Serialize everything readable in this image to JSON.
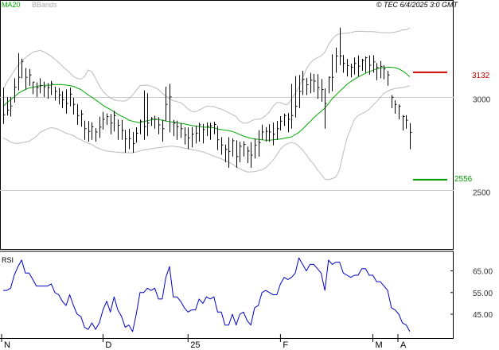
{
  "header": {
    "ma20_label": "MA20",
    "bbands_label": "BBands",
    "copyright": "© TEC 6/4/2025 3:0 GMT"
  },
  "price_panel": {
    "resistance_label": "3132",
    "support_label": "2556",
    "colors": {
      "resistance": "#cc0000",
      "support": "#009900",
      "ma20": "#00aa00",
      "bands": "#bbbbbb",
      "bars": "#000000"
    }
  },
  "rsi_panel": {
    "label": "RSI",
    "color": "#0000cc"
  },
  "chart_data": [
    {
      "type": "ohlc",
      "title": "",
      "legend": [
        "MA20",
        "BBands"
      ],
      "x_ticks": [
        "N",
        "D",
        "25",
        "F",
        "M",
        "A"
      ],
      "y_ticks": [
        "3000",
        "2500"
      ],
      "ylim": [
        2180,
        3520
      ],
      "grid": true,
      "levels": {
        "resistance": 3132,
        "support": 2556
      },
      "close": [
        2904,
        2930,
        2951,
        3052,
        3105,
        3190,
        3105,
        3118,
        3080,
        3050,
        3060,
        3055,
        3050,
        3072,
        3030,
        3010,
        2985,
        2965,
        3015,
        2960,
        2900,
        2908,
        2830,
        2815,
        2840,
        2812,
        2838,
        2880,
        2895,
        2860,
        2900,
        2848,
        2820,
        2775,
        2776,
        2750,
        2805,
        2870,
        2840,
        2860,
        2885,
        2880,
        2850,
        2830,
        2960,
        3000,
        2860,
        2840,
        2830,
        2795,
        2780,
        2800,
        2805,
        2850,
        2825,
        2842,
        2845,
        2852,
        2770,
        2742,
        2720,
        2708,
        2765,
        2680,
        2735,
        2745,
        2710,
        2688,
        2742,
        2755,
        2812,
        2815,
        2812,
        2800,
        2830,
        2870,
        2900,
        2880,
        2900,
        2950,
        3030,
        3095,
        3065,
        3090,
        3085,
        3050,
        3040,
        2965,
        3105,
        3105,
        3220,
        3220,
        3180,
        3168,
        3160,
        3180,
        3165,
        3196,
        3210,
        3170,
        3188,
        3158,
        3164,
        3150,
        3118,
        2998,
        2960,
        2950,
        2895,
        2875,
        2810
      ],
      "high": [
        3050,
        3000,
        3000,
        3100,
        3235,
        3205,
        3155,
        3150,
        3080,
        3078,
        3100,
        3082,
        3074,
        3086,
        3055,
        3048,
        3030,
        3040,
        3050,
        2995,
        2962,
        2930,
        2873,
        2870,
        2864,
        2833,
        2894,
        2919,
        2911,
        2909,
        2925,
        2878,
        2876,
        2823,
        2830,
        2812,
        2837,
        2878,
        3035,
        3020,
        2892,
        2899,
        2891,
        2877,
        3055,
        3070,
        2877,
        2873,
        2860,
        2837,
        2836,
        2838,
        2847,
        2862,
        2855,
        2863,
        2861,
        2867,
        2844,
        2784,
        2744,
        2784,
        2778,
        2767,
        2759,
        2762,
        2733,
        2758,
        2776,
        2822,
        2851,
        2838,
        2853,
        2863,
        2871,
        2897,
        2910,
        2913,
        3070,
        3112,
        3117,
        3140,
        3102,
        3129,
        3123,
        3122,
        3096,
        3045,
        3110,
        3228,
        3265,
        3372,
        3225,
        3203,
        3178,
        3212,
        3222,
        3204,
        3217,
        3222,
        3224,
        3182,
        3193,
        3169,
        3140,
        3010,
        2982,
        2960,
        2903,
        2902,
        2860
      ],
      "low": [
        2855,
        2900,
        2895,
        2970,
        3035,
        3100,
        3040,
        3060,
        3015,
        3000,
        3020,
        3000,
        2990,
        3010,
        2980,
        2960,
        2940,
        2910,
        2950,
        2905,
        2850,
        2840,
        2770,
        2760,
        2770,
        2760,
        2780,
        2825,
        2850,
        2800,
        2815,
        2770,
        2770,
        2700,
        2720,
        2700,
        2755,
        2800,
        2770,
        2790,
        2845,
        2830,
        2800,
        2760,
        2870,
        2810,
        2790,
        2770,
        2780,
        2745,
        2720,
        2730,
        2750,
        2760,
        2750,
        2790,
        2770,
        2800,
        2715,
        2690,
        2650,
        2620,
        2680,
        2620,
        2650,
        2680,
        2645,
        2620,
        2670,
        2680,
        2770,
        2760,
        2760,
        2740,
        2770,
        2820,
        2845,
        2810,
        2830,
        2890,
        2940,
        3010,
        3010,
        3020,
        3025,
        2990,
        2975,
        2830,
        3020,
        3030,
        3130,
        3170,
        3130,
        3110,
        3105,
        3120,
        3110,
        3140,
        3130,
        3120,
        3130,
        3090,
        3100,
        3095,
        3060,
        2940,
        2910,
        2880,
        2820,
        2830,
        2720
      ],
      "ma20": [
        2950,
        2968,
        2985,
        3000,
        3018,
        3030,
        3040,
        3048,
        3052,
        3056,
        3060,
        3062,
        3063,
        3064,
        3066,
        3067,
        3066,
        3064,
        3061,
        3057,
        3048,
        3040,
        3025,
        3011,
        2998,
        2985,
        2970,
        2955,
        2943,
        2933,
        2920,
        2908,
        2896,
        2888,
        2875,
        2870,
        2865,
        2862,
        2868,
        2872,
        2877,
        2879,
        2880,
        2875,
        2871,
        2867,
        2865,
        2863,
        2858,
        2855,
        2851,
        2847,
        2844,
        2840,
        2838,
        2837,
        2836,
        2835,
        2827,
        2825,
        2822,
        2819,
        2815,
        2807,
        2798,
        2790,
        2784,
        2778,
        2775,
        2772,
        2770,
        2768,
        2768,
        2770,
        2772,
        2774,
        2778,
        2782,
        2786,
        2798,
        2810,
        2828,
        2848,
        2868,
        2888,
        2906,
        2922,
        2940,
        2965,
        2990,
        3010,
        3030,
        3048,
        3068,
        3082,
        3095,
        3107,
        3117,
        3127,
        3135,
        3143,
        3150,
        3155,
        3158,
        3160,
        3159,
        3157,
        3150,
        3140,
        3125,
        3108
      ],
      "bb_upper": [
        3040,
        3080,
        3110,
        3140,
        3170,
        3190,
        3210,
        3225,
        3240,
        3245,
        3250,
        3242,
        3232,
        3218,
        3202,
        3185,
        3165,
        3148,
        3130,
        3110,
        3100,
        3095,
        3110,
        3145,
        3135,
        3100,
        3060,
        3030,
        3010,
        2995,
        2985,
        2980,
        2978,
        2978,
        2990,
        3010,
        3035,
        3060,
        3062,
        3064,
        3058,
        3050,
        3040,
        3020,
        3005,
        2990,
        2980,
        2975,
        2970,
        2955,
        2935,
        2922,
        2920,
        2930,
        2940,
        2950,
        2950,
        2948,
        2940,
        2935,
        2925,
        2915,
        2905,
        2895,
        2870,
        2860,
        2860,
        2870,
        2880,
        2880,
        2885,
        2900,
        2920,
        2950,
        2970,
        2970,
        2960,
        2960,
        2990,
        3020,
        3050,
        3100,
        3150,
        3180,
        3200,
        3210,
        3220,
        3240,
        3280,
        3310,
        3330,
        3340,
        3340,
        3342,
        3345,
        3350,
        3352,
        3352,
        3350,
        3350,
        3350,
        3348,
        3345,
        3345,
        3344,
        3345,
        3348,
        3352,
        3360,
        3360,
        3370
      ],
      "bb_lower": [
        2780,
        2770,
        2758,
        2752,
        2750,
        2755,
        2758,
        2762,
        2775,
        2790,
        2810,
        2820,
        2830,
        2835,
        2832,
        2825,
        2815,
        2805,
        2800,
        2792,
        2780,
        2770,
        2760,
        2752,
        2745,
        2732,
        2722,
        2715,
        2710,
        2707,
        2705,
        2703,
        2701,
        2702,
        2700,
        2700,
        2705,
        2710,
        2715,
        2718,
        2722,
        2725,
        2728,
        2730,
        2733,
        2735,
        2735,
        2733,
        2730,
        2726,
        2722,
        2718,
        2714,
        2710,
        2705,
        2698,
        2690,
        2682,
        2675,
        2668,
        2658,
        2650,
        2640,
        2625,
        2615,
        2605,
        2598,
        2598,
        2600,
        2604,
        2610,
        2620,
        2640,
        2660,
        2690,
        2720,
        2740,
        2750,
        2755,
        2750,
        2735,
        2715,
        2690,
        2660,
        2640,
        2608,
        2585,
        2560,
        2555,
        2562,
        2570,
        2610,
        2700,
        2780,
        2830,
        2880,
        2900,
        2910,
        2920,
        2935,
        2955,
        2975,
        2998,
        3020,
        3030,
        3040,
        3045,
        3048,
        3050,
        3055,
        3060
      ]
    },
    {
      "type": "line",
      "title": "RSI",
      "x_ticks": [
        "N",
        "D",
        "25",
        "F",
        "M",
        "A"
      ],
      "y_ticks": [
        "65.00",
        "55.00",
        "45.00"
      ],
      "ylim": [
        34,
        74
      ],
      "grid": true,
      "series": [
        {
          "name": "RSI",
          "values": [
            56,
            56,
            57,
            63,
            67,
            70,
            64,
            64,
            61,
            58,
            58,
            58,
            58,
            59,
            55,
            54,
            51,
            49,
            54,
            49,
            45,
            44,
            39,
            38,
            41,
            38,
            41,
            47,
            51,
            46,
            53,
            47,
            44,
            39,
            40,
            37,
            45,
            55,
            55,
            57,
            56,
            57,
            52,
            52,
            62,
            67,
            53,
            53,
            51,
            48,
            46,
            47,
            47,
            52,
            50,
            53,
            52,
            53,
            46,
            46,
            40,
            40,
            45,
            40,
            45,
            46,
            42,
            40,
            48,
            49,
            55,
            56,
            55,
            54,
            54,
            59,
            62,
            61,
            62,
            64,
            71,
            68,
            65,
            68,
            68,
            66,
            64,
            56,
            70,
            68,
            69,
            69,
            64,
            63,
            62,
            63,
            63,
            66,
            66,
            63,
            63,
            60,
            60,
            58,
            56,
            48,
            47,
            45,
            41,
            40,
            37
          ]
        }
      ]
    }
  ]
}
